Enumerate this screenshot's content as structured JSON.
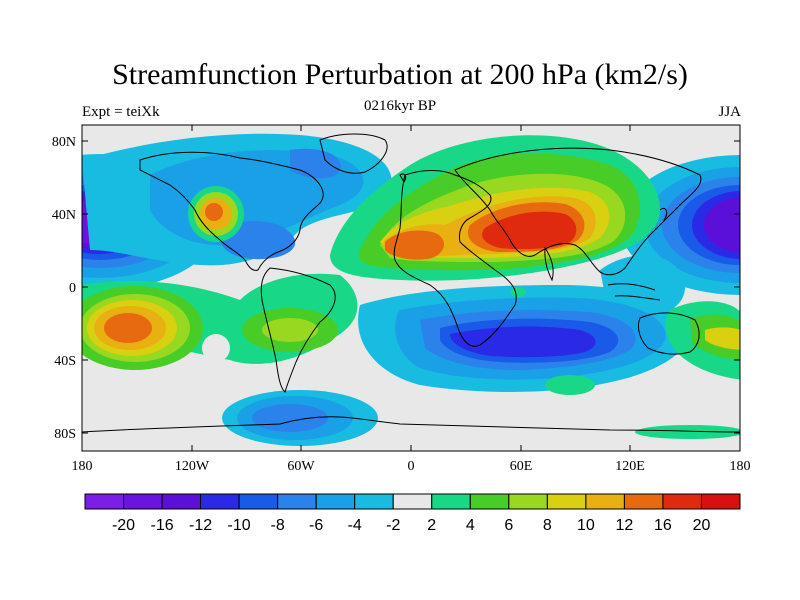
{
  "title": "Streamfunction Perturbation at 200 hPa (km2/s)",
  "subtitle_left": "Expt = teiXk",
  "subtitle_center": "0216kyr BP",
  "subtitle_right": "JJA",
  "axes": {
    "x_ticks": [
      "180",
      "120W",
      "60W",
      "0",
      "60E",
      "120E",
      "180"
    ],
    "y_ticks": [
      "80N",
      "40N",
      "0",
      "40S",
      "80S"
    ]
  },
  "colorbar": {
    "colors": [
      "#7a1ee8",
      "#6a14e0",
      "#5a10d8",
      "#2a2ae6",
      "#1a5ae8",
      "#2a82ea",
      "#1aa0e6",
      "#18bce0",
      "#e8e8e8",
      "#18d888",
      "#48cc28",
      "#98d820",
      "#d8d010",
      "#e8b010",
      "#e86a10",
      "#e02a10",
      "#d81010"
    ],
    "labels": [
      "-20",
      "-16",
      "-12",
      "-10",
      "-8",
      "-6",
      "-4",
      "-2",
      "2",
      "4",
      "6",
      "8",
      "10",
      "12",
      "16",
      "20"
    ]
  }
}
